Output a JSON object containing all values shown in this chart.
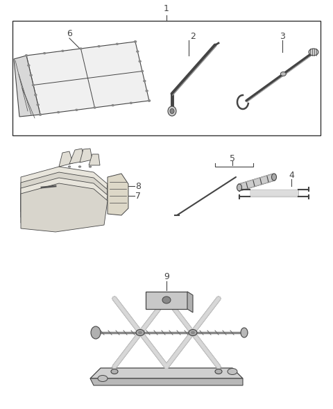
{
  "bg_color": "#ffffff",
  "line_color": "#444444",
  "label_color": "#000000",
  "border_color": "#333333",
  "fig_width": 4.8,
  "fig_height": 5.89,
  "dpi": 100
}
